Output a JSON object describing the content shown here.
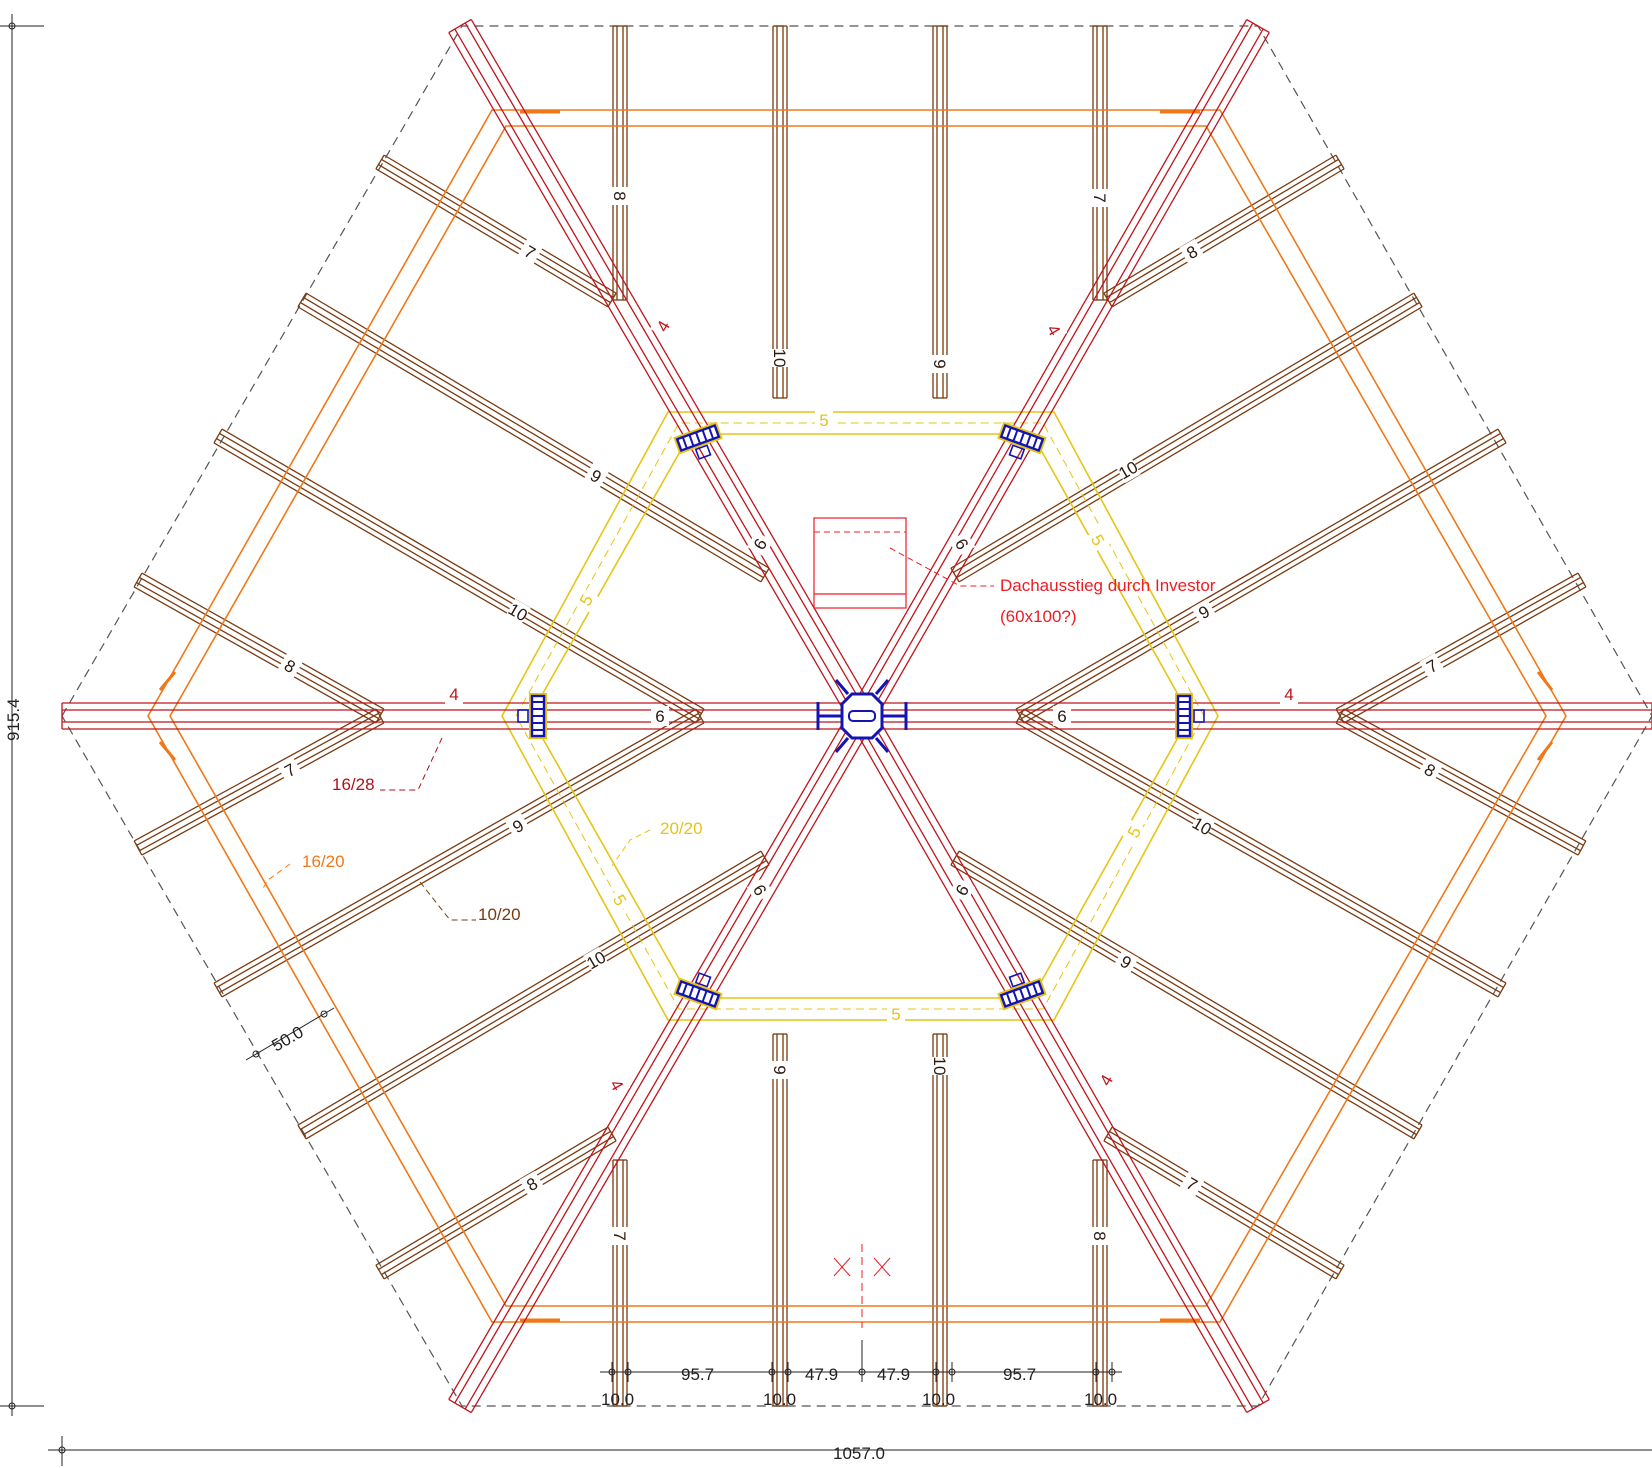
{
  "colors": {
    "ridge": "#c0141c",
    "ridge_inner": "#d2202a",
    "rafter": "#7a3a10",
    "purlin": "#f07818",
    "ring": "#e6c414",
    "steel": "#1414b4",
    "outline": "#555555",
    "dimension": "#222222",
    "annotation": "#ee1c24"
  },
  "dimensions": {
    "overall_width": "1057.0",
    "overall_height": "915.4",
    "eave_offset": "50.0",
    "bottom_chain": [
      "10.0",
      "95.7",
      "10.0",
      "47.9",
      "47.9",
      "10.0",
      "95.7",
      "10.0"
    ]
  },
  "section_labels": {
    "ridge_beam": "16/28",
    "purlin": "16/20",
    "rafter": "10/20",
    "ring_beam": "20/20"
  },
  "annotation": {
    "line1": "Dachausstieg durch Investor",
    "line2": "(60x100?)"
  },
  "member_numbers": {
    "hip_outer": "4",
    "hip_inner": "6",
    "ring": "5",
    "rafters": [
      "7",
      "8",
      "9",
      "10"
    ]
  },
  "icons": [
    "center-column-steel-connector-icon",
    "section-cut-marker-icon"
  ]
}
